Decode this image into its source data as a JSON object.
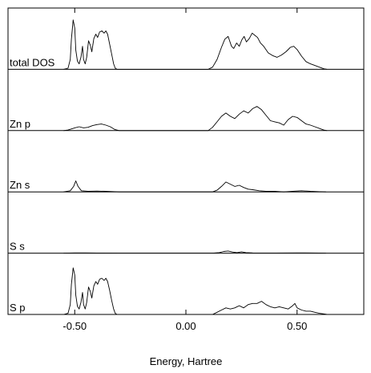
{
  "chart_data": {
    "type": "line",
    "xlabel": "Energy, Hartree",
    "xlim": [
      -0.8,
      0.8
    ],
    "x_ticks": [
      {
        "value": -0.5,
        "label": "-0.50"
      },
      {
        "value": 0.0,
        "label": "0.00"
      },
      {
        "value": 0.5,
        "label": "0.50"
      }
    ],
    "grid": false,
    "legend": "none",
    "panels": [
      {
        "label": "total DOS",
        "ylim": [
          0,
          1
        ],
        "points": [
          [
            -0.55,
            0.0
          ],
          [
            -0.53,
            0.02
          ],
          [
            -0.52,
            0.18
          ],
          [
            -0.515,
            0.55
          ],
          [
            -0.507,
            0.9
          ],
          [
            -0.5,
            0.75
          ],
          [
            -0.495,
            0.35
          ],
          [
            -0.488,
            0.15
          ],
          [
            -0.48,
            0.1
          ],
          [
            -0.472,
            0.22
          ],
          [
            -0.465,
            0.42
          ],
          [
            -0.46,
            0.18
          ],
          [
            -0.453,
            0.1
          ],
          [
            -0.446,
            0.22
          ],
          [
            -0.438,
            0.52
          ],
          [
            -0.43,
            0.44
          ],
          [
            -0.423,
            0.32
          ],
          [
            -0.414,
            0.56
          ],
          [
            -0.405,
            0.64
          ],
          [
            -0.397,
            0.58
          ],
          [
            -0.388,
            0.68
          ],
          [
            -0.378,
            0.7
          ],
          [
            -0.368,
            0.66
          ],
          [
            -0.36,
            0.7
          ],
          [
            -0.352,
            0.64
          ],
          [
            -0.343,
            0.46
          ],
          [
            -0.334,
            0.28
          ],
          [
            -0.325,
            0.1
          ],
          [
            -0.318,
            0.02
          ],
          [
            -0.31,
            0.0
          ],
          [
            0.1,
            0.0
          ],
          [
            0.12,
            0.04
          ],
          [
            0.14,
            0.18
          ],
          [
            0.16,
            0.4
          ],
          [
            0.175,
            0.55
          ],
          [
            0.19,
            0.6
          ],
          [
            0.205,
            0.42
          ],
          [
            0.215,
            0.38
          ],
          [
            0.228,
            0.48
          ],
          [
            0.24,
            0.42
          ],
          [
            0.252,
            0.54
          ],
          [
            0.262,
            0.6
          ],
          [
            0.272,
            0.5
          ],
          [
            0.285,
            0.56
          ],
          [
            0.298,
            0.66
          ],
          [
            0.31,
            0.62
          ],
          [
            0.322,
            0.58
          ],
          [
            0.335,
            0.48
          ],
          [
            0.35,
            0.42
          ],
          [
            0.37,
            0.3
          ],
          [
            0.39,
            0.25
          ],
          [
            0.41,
            0.22
          ],
          [
            0.43,
            0.26
          ],
          [
            0.45,
            0.32
          ],
          [
            0.47,
            0.4
          ],
          [
            0.485,
            0.42
          ],
          [
            0.5,
            0.36
          ],
          [
            0.52,
            0.24
          ],
          [
            0.54,
            0.14
          ],
          [
            0.56,
            0.1
          ],
          [
            0.58,
            0.07
          ],
          [
            0.6,
            0.04
          ],
          [
            0.62,
            0.01
          ],
          [
            0.635,
            0.0
          ]
        ]
      },
      {
        "label": "Zn p",
        "ylim": [
          0,
          1
        ],
        "points": [
          [
            -0.55,
            0.0
          ],
          [
            -0.53,
            0.01
          ],
          [
            -0.5,
            0.05
          ],
          [
            -0.48,
            0.07
          ],
          [
            -0.46,
            0.05
          ],
          [
            -0.44,
            0.06
          ],
          [
            -0.42,
            0.09
          ],
          [
            -0.4,
            0.11
          ],
          [
            -0.38,
            0.12
          ],
          [
            -0.36,
            0.1
          ],
          [
            -0.34,
            0.07
          ],
          [
            -0.32,
            0.02
          ],
          [
            -0.3,
            0.0
          ],
          [
            0.1,
            0.0
          ],
          [
            0.12,
            0.06
          ],
          [
            0.14,
            0.16
          ],
          [
            0.16,
            0.26
          ],
          [
            0.18,
            0.32
          ],
          [
            0.2,
            0.26
          ],
          [
            0.22,
            0.22
          ],
          [
            0.24,
            0.3
          ],
          [
            0.26,
            0.36
          ],
          [
            0.28,
            0.32
          ],
          [
            0.3,
            0.4
          ],
          [
            0.32,
            0.44
          ],
          [
            0.34,
            0.38
          ],
          [
            0.36,
            0.28
          ],
          [
            0.38,
            0.18
          ],
          [
            0.4,
            0.16
          ],
          [
            0.42,
            0.14
          ],
          [
            0.44,
            0.1
          ],
          [
            0.46,
            0.2
          ],
          [
            0.48,
            0.26
          ],
          [
            0.5,
            0.24
          ],
          [
            0.52,
            0.18
          ],
          [
            0.54,
            0.12
          ],
          [
            0.56,
            0.1
          ],
          [
            0.58,
            0.07
          ],
          [
            0.6,
            0.04
          ],
          [
            0.62,
            0.01
          ],
          [
            0.635,
            0.0
          ]
        ]
      },
      {
        "label": "Zn s",
        "ylim": [
          0,
          1
        ],
        "points": [
          [
            -0.55,
            0.0
          ],
          [
            -0.52,
            0.02
          ],
          [
            -0.505,
            0.1
          ],
          [
            -0.495,
            0.2
          ],
          [
            -0.485,
            0.1
          ],
          [
            -0.47,
            0.02
          ],
          [
            -0.44,
            0.01
          ],
          [
            -0.4,
            0.015
          ],
          [
            -0.36,
            0.01
          ],
          [
            -0.32,
            0.005
          ],
          [
            -0.3,
            0.0
          ],
          [
            0.12,
            0.0
          ],
          [
            0.14,
            0.03
          ],
          [
            0.16,
            0.1
          ],
          [
            0.18,
            0.18
          ],
          [
            0.2,
            0.14
          ],
          [
            0.22,
            0.1
          ],
          [
            0.24,
            0.12
          ],
          [
            0.26,
            0.08
          ],
          [
            0.28,
            0.05
          ],
          [
            0.3,
            0.04
          ],
          [
            0.33,
            0.02
          ],
          [
            0.36,
            0.01
          ],
          [
            0.4,
            0.01
          ],
          [
            0.44,
            0.0
          ],
          [
            0.48,
            0.01
          ],
          [
            0.52,
            0.02
          ],
          [
            0.56,
            0.01
          ],
          [
            0.6,
            0.005
          ],
          [
            0.63,
            0.0
          ]
        ]
      },
      {
        "label": "S s",
        "ylim": [
          0,
          1
        ],
        "points": [
          [
            -0.55,
            0.0
          ],
          [
            -0.5,
            0.005
          ],
          [
            -0.45,
            0.005
          ],
          [
            -0.4,
            0.003
          ],
          [
            -0.3,
            0.0
          ],
          [
            0.12,
            0.0
          ],
          [
            0.15,
            0.01
          ],
          [
            0.17,
            0.03
          ],
          [
            0.19,
            0.04
          ],
          [
            0.21,
            0.02
          ],
          [
            0.23,
            0.01
          ],
          [
            0.25,
            0.025
          ],
          [
            0.27,
            0.01
          ],
          [
            0.3,
            0.005
          ],
          [
            0.35,
            0.003
          ],
          [
            0.4,
            0.002
          ],
          [
            0.5,
            0.005
          ],
          [
            0.6,
            0.002
          ],
          [
            0.63,
            0.0
          ]
        ]
      },
      {
        "label": "S p",
        "ylim": [
          0,
          1
        ],
        "points": [
          [
            -0.55,
            0.0
          ],
          [
            -0.53,
            0.02
          ],
          [
            -0.52,
            0.18
          ],
          [
            -0.515,
            0.55
          ],
          [
            -0.507,
            0.85
          ],
          [
            -0.5,
            0.72
          ],
          [
            -0.495,
            0.35
          ],
          [
            -0.488,
            0.15
          ],
          [
            -0.48,
            0.1
          ],
          [
            -0.472,
            0.22
          ],
          [
            -0.465,
            0.4
          ],
          [
            -0.46,
            0.18
          ],
          [
            -0.453,
            0.1
          ],
          [
            -0.446,
            0.22
          ],
          [
            -0.438,
            0.5
          ],
          [
            -0.43,
            0.42
          ],
          [
            -0.423,
            0.3
          ],
          [
            -0.414,
            0.52
          ],
          [
            -0.405,
            0.6
          ],
          [
            -0.397,
            0.55
          ],
          [
            -0.388,
            0.64
          ],
          [
            -0.378,
            0.66
          ],
          [
            -0.368,
            0.62
          ],
          [
            -0.36,
            0.66
          ],
          [
            -0.352,
            0.6
          ],
          [
            -0.343,
            0.44
          ],
          [
            -0.334,
            0.26
          ],
          [
            -0.325,
            0.1
          ],
          [
            -0.318,
            0.02
          ],
          [
            -0.31,
            0.0
          ],
          [
            0.12,
            0.0
          ],
          [
            0.14,
            0.04
          ],
          [
            0.16,
            0.08
          ],
          [
            0.18,
            0.12
          ],
          [
            0.2,
            0.1
          ],
          [
            0.22,
            0.12
          ],
          [
            0.24,
            0.16
          ],
          [
            0.26,
            0.12
          ],
          [
            0.28,
            0.18
          ],
          [
            0.3,
            0.2
          ],
          [
            0.32,
            0.2
          ],
          [
            0.34,
            0.24
          ],
          [
            0.36,
            0.18
          ],
          [
            0.38,
            0.14
          ],
          [
            0.4,
            0.12
          ],
          [
            0.42,
            0.14
          ],
          [
            0.44,
            0.12
          ],
          [
            0.46,
            0.1
          ],
          [
            0.48,
            0.16
          ],
          [
            0.49,
            0.2
          ],
          [
            0.5,
            0.12
          ],
          [
            0.52,
            0.08
          ],
          [
            0.54,
            0.06
          ],
          [
            0.56,
            0.06
          ],
          [
            0.58,
            0.04
          ],
          [
            0.6,
            0.02
          ],
          [
            0.62,
            0.01
          ],
          [
            0.635,
            0.0
          ]
        ]
      }
    ]
  }
}
